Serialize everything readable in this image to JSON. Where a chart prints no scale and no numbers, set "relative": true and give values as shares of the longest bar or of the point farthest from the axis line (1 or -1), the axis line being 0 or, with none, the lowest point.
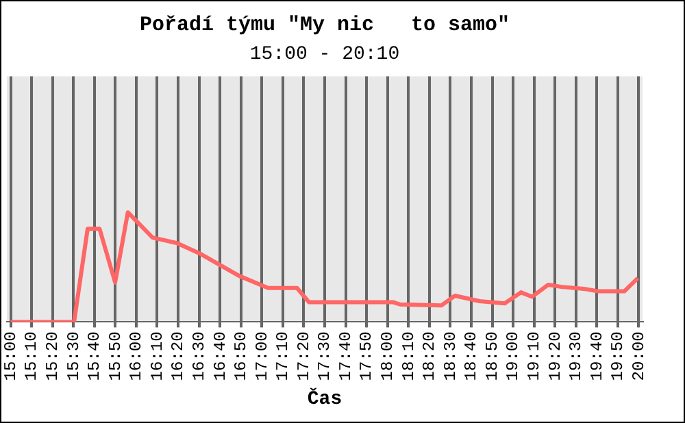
{
  "chart_data": {
    "type": "line",
    "title": "Pořadí týmu \"My nic   to samo\"",
    "subtitle": "15:00 - 20:10",
    "xlabel": "Čas",
    "relative": true,
    "grid": true,
    "legend": false,
    "marker": "none",
    "line_style": "solid",
    "x": [
      15.0,
      15.505,
      15.613,
      15.708,
      15.832,
      15.933,
      16.13,
      16.322,
      16.513,
      16.82,
      17.05,
      17.28,
      17.375,
      18.047,
      18.1,
      18.428,
      18.537,
      18.733,
      18.933,
      19.062,
      19.15,
      19.28,
      19.387,
      19.578,
      19.675,
      19.885,
      19.992
    ],
    "series": [
      {
        "color": "#ff6666",
        "values": [
          0,
          0,
          0.85,
          0.85,
          0.36,
          1.0,
          0.77,
          0.72,
          0.62,
          0.42,
          0.31,
          0.31,
          0.18,
          0.18,
          0.16,
          0.15,
          0.24,
          0.19,
          0.17,
          0.27,
          0.23,
          0.34,
          0.32,
          0.3,
          0.28,
          0.28,
          0.4
        ]
      }
    ],
    "xlim": [
      14.97,
      20.03
    ],
    "xticks": [
      {
        "value": 15,
        "label": "15:00"
      },
      {
        "value": 15.1667,
        "label": "15:10"
      },
      {
        "value": 15.3333,
        "label": "15:20"
      },
      {
        "value": 15.5,
        "label": "15:30"
      },
      {
        "value": 15.6667,
        "label": "15:40"
      },
      {
        "value": 15.8333,
        "label": "15:50"
      },
      {
        "value": 16,
        "label": "16:00"
      },
      {
        "value": 16.1667,
        "label": "16:10"
      },
      {
        "value": 16.3333,
        "label": "16:20"
      },
      {
        "value": 16.5,
        "label": "16:30"
      },
      {
        "value": 16.6667,
        "label": "16:40"
      },
      {
        "value": 16.8333,
        "label": "16:50"
      },
      {
        "value": 17,
        "label": "17:00"
      },
      {
        "value": 17.1667,
        "label": "17:10"
      },
      {
        "value": 17.3333,
        "label": "17:20"
      },
      {
        "value": 17.5,
        "label": "17:30"
      },
      {
        "value": 17.6667,
        "label": "17:40"
      },
      {
        "value": 17.8333,
        "label": "17:50"
      },
      {
        "value": 18,
        "label": "18:00"
      },
      {
        "value": 18.1667,
        "label": "18:10"
      },
      {
        "value": 18.3333,
        "label": "18:20"
      },
      {
        "value": 18.5,
        "label": "18:30"
      },
      {
        "value": 18.6667,
        "label": "18:40"
      },
      {
        "value": 18.8333,
        "label": "18:50"
      },
      {
        "value": 19,
        "label": "19:00"
      },
      {
        "value": 19.1667,
        "label": "19:10"
      },
      {
        "value": 19.3333,
        "label": "19:20"
      },
      {
        "value": 19.5,
        "label": "19:30"
      },
      {
        "value": 19.6667,
        "label": "19:40"
      },
      {
        "value": 19.8333,
        "label": "19:50"
      },
      {
        "value": 20,
        "label": "20:00"
      }
    ]
  }
}
